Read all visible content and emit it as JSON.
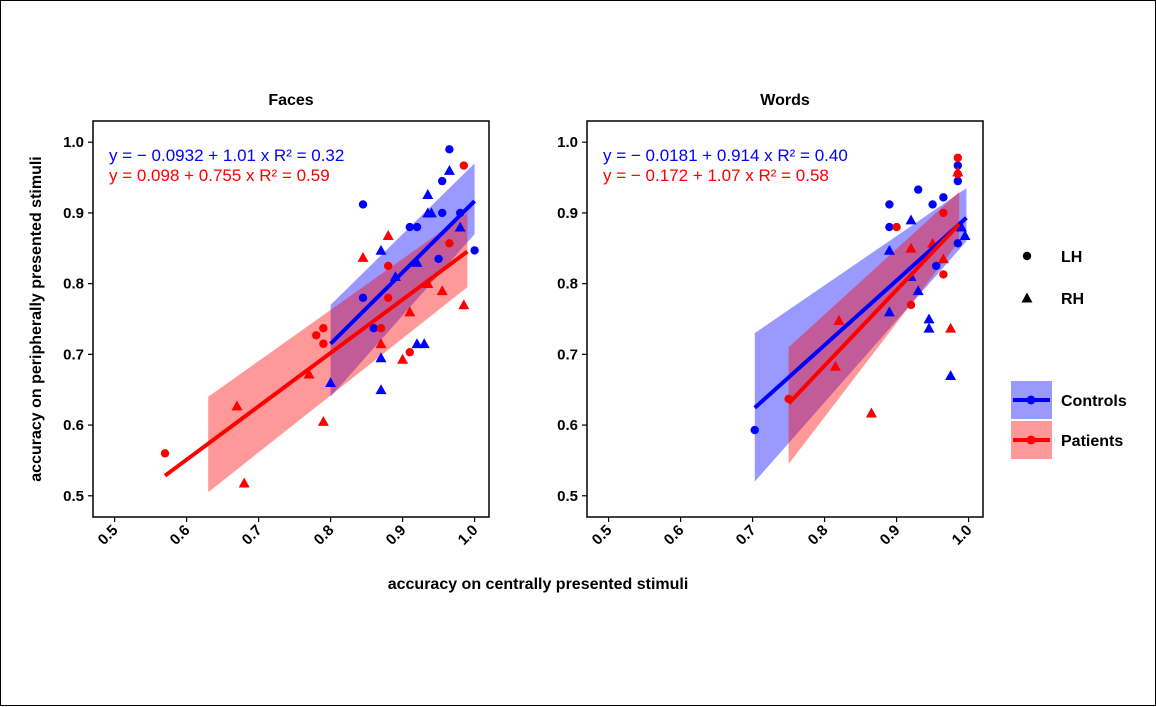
{
  "chart_data": {
    "type": "scatter",
    "xlabel": "accuracy on centrally presented stimuli",
    "ylabel": "accuracy on peripherally presented stimuli",
    "xlim": [
      0.47,
      1.02
    ],
    "ylim": [
      0.47,
      1.03
    ],
    "x_ticks": [
      "0.5",
      "0.6",
      "0.7",
      "0.8",
      "0.9",
      "1.0"
    ],
    "y_ticks": [
      "0.5",
      "0.6",
      "0.7",
      "0.8",
      "0.9",
      "1.0"
    ],
    "legend": {
      "position": "right",
      "shapes": [
        {
          "label": "LH",
          "shape": "circle"
        },
        {
          "label": "RH",
          "shape": "triangle"
        }
      ],
      "groups": [
        {
          "label": "Controls",
          "color": "#0000FF"
        },
        {
          "label": "Patients",
          "color": "#FF0000"
        }
      ]
    },
    "panels": [
      {
        "title": "Faces",
        "equations": [
          {
            "text": "y = − 0.0932 + 1.01 x   R² = 0.32",
            "color": "#0000FF"
          },
          {
            "text": "y = 0.098 + 0.755 x   R² = 0.59",
            "color": "#FF0000"
          }
        ],
        "fits": [
          {
            "group": "Controls",
            "x": [
              0.8,
              1.0
            ],
            "y": [
              0.715,
              0.9168
            ],
            "band_lo": [
              0.64,
              0.87
            ],
            "band_hi": [
              0.77,
              0.97
            ]
          },
          {
            "group": "Patients",
            "x": [
              0.57,
              0.99
            ],
            "y": [
              0.5284,
              0.8454
            ],
            "band_lo": [
              0.505,
              0.795
            ],
            "band_hi": [
              0.64,
              0.9
            ],
            "band_x": [
              0.63,
              0.99
            ]
          }
        ],
        "points": {
          "Controls_LH": [
            [
              0.845,
              0.912
            ],
            [
              0.845,
              0.78
            ],
            [
              0.86,
              0.737
            ],
            [
              0.91,
              0.88
            ],
            [
              0.92,
              0.88
            ],
            [
              0.955,
              0.9
            ],
            [
              0.955,
              0.945
            ],
            [
              0.965,
              0.99
            ],
            [
              0.98,
              0.9
            ],
            [
              1.0,
              0.847
            ],
            [
              0.95,
              0.835
            ]
          ],
          "Controls_RH": [
            [
              0.8,
              0.66
            ],
            [
              0.87,
              0.695
            ],
            [
              0.87,
              0.65
            ],
            [
              0.87,
              0.847
            ],
            [
              0.89,
              0.81
            ],
            [
              0.92,
              0.83
            ],
            [
              0.92,
              0.715
            ],
            [
              0.93,
              0.715
            ],
            [
              0.935,
              0.926
            ],
            [
              0.935,
              0.9
            ],
            [
              0.94,
              0.9
            ],
            [
              0.965,
              0.96
            ],
            [
              0.98,
              0.88
            ]
          ],
          "Patients_LH": [
            [
              0.57,
              0.56
            ],
            [
              0.78,
              0.727
            ],
            [
              0.79,
              0.737
            ],
            [
              0.79,
              0.715
            ],
            [
              0.87,
              0.737
            ],
            [
              0.88,
              0.78
            ],
            [
              0.88,
              0.825
            ],
            [
              0.91,
              0.703
            ],
            [
              0.985,
              0.967
            ],
            [
              0.965,
              0.857
            ]
          ],
          "Patients_RH": [
            [
              0.67,
              0.627
            ],
            [
              0.68,
              0.518
            ],
            [
              0.77,
              0.672
            ],
            [
              0.79,
              0.605
            ],
            [
              0.845,
              0.837
            ],
            [
              0.87,
              0.715
            ],
            [
              0.88,
              0.868
            ],
            [
              0.9,
              0.693
            ],
            [
              0.91,
              0.76
            ],
            [
              0.935,
              0.8
            ],
            [
              0.955,
              0.79
            ],
            [
              0.985,
              0.77
            ]
          ]
        }
      },
      {
        "title": "Words",
        "equations": [
          {
            "text": "y = − 0.0181 + 0.914 x   R² = 0.40",
            "color": "#0000FF"
          },
          {
            "text": "y = − 0.172 + 1.07 x   R² = 0.58",
            "color": "#FF0000"
          }
        ],
        "fits": [
          {
            "group": "Controls",
            "x": [
              0.703,
              0.997
            ],
            "y": [
              0.6244,
              0.8932
            ],
            "band_lo": [
              0.52,
              0.86
            ],
            "band_hi": [
              0.73,
              0.935
            ]
          },
          {
            "group": "Patients",
            "x": [
              0.75,
              0.987
            ],
            "y": [
              0.6305,
              0.8841
            ],
            "band_lo": [
              0.545,
              0.86
            ],
            "band_hi": [
              0.71,
              0.93
            ]
          }
        ],
        "points": {
          "Controls_LH": [
            [
              0.703,
              0.593
            ],
            [
              0.89,
              0.912
            ],
            [
              0.89,
              0.88
            ],
            [
              0.93,
              0.933
            ],
            [
              0.95,
              0.912
            ],
            [
              0.965,
              0.922
            ],
            [
              0.985,
              0.967
            ],
            [
              0.985,
              0.945
            ],
            [
              0.985,
              0.857
            ],
            [
              0.955,
              0.825
            ]
          ],
          "Controls_RH": [
            [
              0.89,
              0.847
            ],
            [
              0.89,
              0.76
            ],
            [
              0.92,
              0.81
            ],
            [
              0.92,
              0.89
            ],
            [
              0.93,
              0.79
            ],
            [
              0.945,
              0.75
            ],
            [
              0.945,
              0.737
            ],
            [
              0.975,
              0.67
            ],
            [
              0.99,
              0.88
            ],
            [
              0.995,
              0.868
            ]
          ],
          "Patients_LH": [
            [
              0.75,
              0.637
            ],
            [
              0.9,
              0.88
            ],
            [
              0.92,
              0.77
            ],
            [
              0.965,
              0.813
            ],
            [
              0.965,
              0.9
            ],
            [
              0.985,
              0.978
            ],
            [
              0.985,
              0.955
            ]
          ],
          "Patients_RH": [
            [
              0.82,
              0.748
            ],
            [
              0.815,
              0.683
            ],
            [
              0.865,
              0.617
            ],
            [
              0.92,
              0.85
            ],
            [
              0.975,
              0.737
            ],
            [
              0.985,
              0.958
            ],
            [
              0.965,
              0.835
            ],
            [
              0.95,
              0.857
            ]
          ]
        }
      }
    ]
  }
}
